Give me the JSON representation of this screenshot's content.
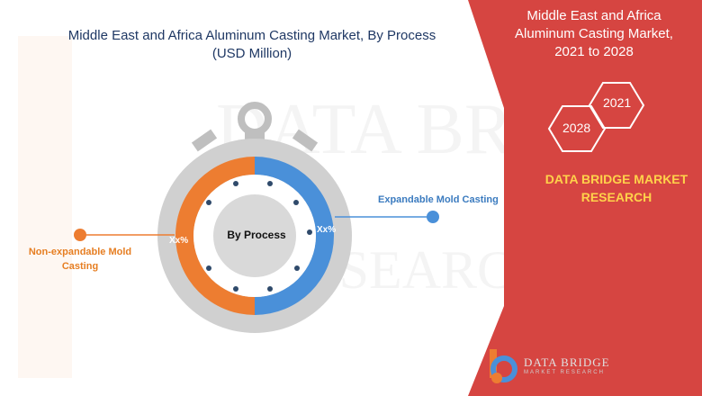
{
  "title_line1": "Middle East and Africa Aluminum Casting Market, By Process",
  "title_line2": "(USD Million)",
  "right_panel": {
    "title_line1": "Middle East and Africa",
    "title_line2": "Aluminum Casting Market,",
    "title_line3": "2021 to 2028",
    "year_start": "2021",
    "year_end": "2028",
    "brand_line1": "DATA BRIDGE MARKET",
    "brand_line2": "RESEARCH",
    "color": "#d64541"
  },
  "logo": {
    "name": "DATA BRIDGE",
    "tagline": "MARKET RESEARCH"
  },
  "chart_data": {
    "type": "pie",
    "style": "donut (stopwatch)",
    "center_label": "By Process",
    "segments": [
      {
        "name": "Expandable Mold Casting",
        "value_label": "Xx%",
        "color": "#4a90d9",
        "side": "right"
      },
      {
        "name": "Non-expandable Mold Casting",
        "value_label": "Xx%",
        "color": "#ed7d31",
        "side": "left"
      }
    ]
  }
}
